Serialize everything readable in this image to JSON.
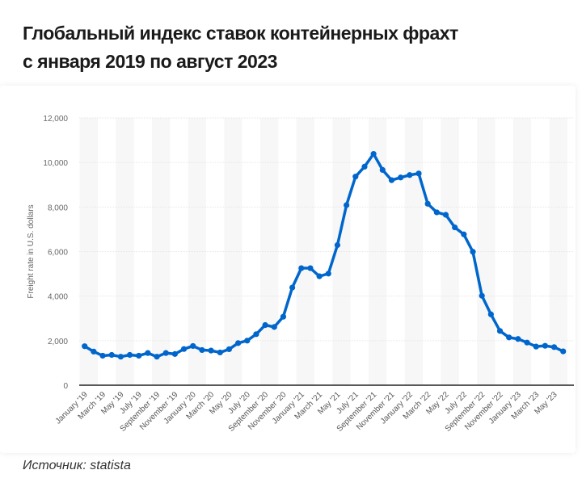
{
  "title_line1": "Глобальный индекс ставок контейнерных фрахт",
  "title_line2": "с января 2019 по август 2023",
  "source": "Источник: statista",
  "chart_data": {
    "type": "line",
    "title": "Глобальный индекс ставок контейнерных фрахт с января 2019 по август 2023",
    "ylabel": "Freight rate in U.S. dollars",
    "xlabel": "",
    "ylim": [
      0,
      12000
    ],
    "yticks": [
      0,
      2000,
      4000,
      6000,
      8000,
      10000,
      12000
    ],
    "ytick_labels": [
      "0",
      "2,000",
      "4,000",
      "6,000",
      "8,000",
      "10,000",
      "12,000"
    ],
    "grid": true,
    "line_color": "#0066cc",
    "xtick_labels": [
      "January '19",
      "March '19",
      "May '19",
      "July '19",
      "September '19",
      "November '19",
      "January '20",
      "March '20",
      "May '20",
      "July '20",
      "September '20",
      "November '20",
      "January '21",
      "March '21",
      "May '21",
      "July '21",
      "September '21",
      "November '21",
      "January '22",
      "March '22",
      "May '22",
      "July '22",
      "September '22",
      "November '22",
      "January '23",
      "March '23",
      "May '23"
    ],
    "x": [
      "Jan 2019",
      "Feb 2019",
      "Mar 2019",
      "Apr 2019",
      "May 2019",
      "Jun 2019",
      "Jul 2019",
      "Aug 2019",
      "Sep 2019",
      "Oct 2019",
      "Nov 2019",
      "Dec 2019",
      "Jan 2020",
      "Feb 2020",
      "Mar 2020",
      "Apr 2020",
      "May 2020",
      "Jun 2020",
      "Jul 2020",
      "Aug 2020",
      "Sep 2020",
      "Oct 2020",
      "Nov 2020",
      "Dec 2020",
      "Jan 2021",
      "Feb 2021",
      "Mar 2021",
      "Apr 2021",
      "May 2021",
      "Jun 2021",
      "Jul 2021",
      "Aug 2021",
      "Sep 2021",
      "Oct 2021",
      "Nov 2021",
      "Dec 2021",
      "Jan 2022",
      "Feb 2022",
      "Mar 2022",
      "Apr 2022",
      "May 2022",
      "Jun 2022",
      "Jul 2022",
      "Aug 2022",
      "Sep 2022",
      "Oct 2022",
      "Nov 2022",
      "Dec 2022",
      "Jan 2023",
      "Feb 2023",
      "Mar 2023",
      "Apr 2023",
      "May 2023",
      "Jun 2023"
    ],
    "values": [
      1750,
      1510,
      1325,
      1360,
      1280,
      1360,
      1325,
      1445,
      1280,
      1445,
      1400,
      1625,
      1760,
      1580,
      1555,
      1470,
      1615,
      1890,
      2000,
      2290,
      2700,
      2615,
      3075,
      4385,
      5255,
      5255,
      4890,
      5010,
      6290,
      8085,
      9365,
      9810,
      10385,
      9665,
      9205,
      9325,
      9435,
      9505,
      8145,
      7760,
      7650,
      7085,
      6770,
      5990,
      4015,
      3180,
      2435,
      2145,
      2075,
      1915,
      1735,
      1770,
      1710,
      1520
    ]
  }
}
